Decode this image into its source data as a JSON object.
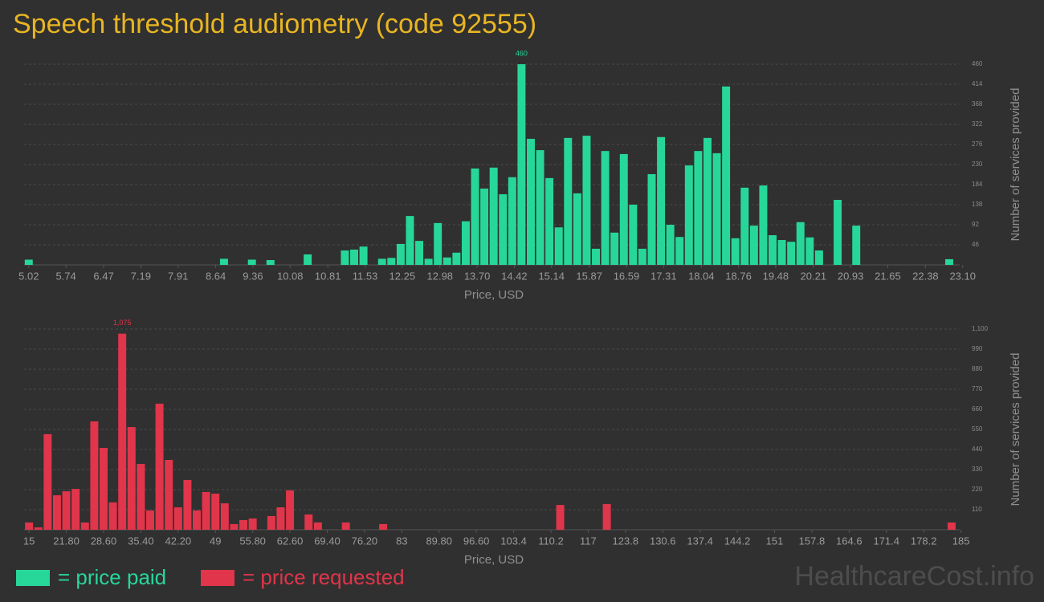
{
  "watermark": "HealthcareCost.info",
  "legend_position": "bottom-left",
  "chart_data": [
    {
      "type": "bar",
      "title": "Speech threshold audiometry (code 92555)",
      "xlabel": "Price, USD",
      "ylabel": "Number of services provided",
      "grid": true,
      "label_max": true,
      "x": [
        5.02,
        8.8,
        9.34,
        9.7,
        10.42,
        11.14,
        11.32,
        11.5,
        11.86,
        12.04,
        12.22,
        12.4,
        12.58,
        12.76,
        12.94,
        13.12,
        13.3,
        13.48,
        13.66,
        13.84,
        14.02,
        14.2,
        14.38,
        14.56,
        14.74,
        14.92,
        15.1,
        15.28,
        15.46,
        15.64,
        15.82,
        16.0,
        16.18,
        16.36,
        16.54,
        16.72,
        16.9,
        17.08,
        17.26,
        17.44,
        17.62,
        17.8,
        17.98,
        18.16,
        18.34,
        18.52,
        18.7,
        18.88,
        19.06,
        19.24,
        19.42,
        19.6,
        19.78,
        19.96,
        20.14,
        20.32,
        20.68,
        21.04,
        22.84
      ],
      "series": [
        {
          "name": "= price paid",
          "color": "#27d79a",
          "values": [
            12,
            14,
            12,
            11,
            24,
            33,
            35,
            42,
            14,
            16,
            48,
            112,
            55,
            14,
            96,
            17,
            28,
            100,
            221,
            175,
            223,
            162,
            201,
            460,
            289,
            263,
            199,
            86,
            291,
            164,
            296,
            37,
            261,
            74,
            254,
            138,
            37,
            208,
            293,
            92,
            64,
            228,
            261,
            291,
            256,
            409,
            61,
            177,
            90,
            182,
            68,
            57,
            53,
            98,
            63,
            33,
            149,
            90,
            13
          ]
        }
      ],
      "xlim": [
        4.93,
        23.12
      ],
      "xticks": [
        5.02,
        5.74,
        6.47,
        7.19,
        7.91,
        8.64,
        9.36,
        10.08,
        10.81,
        11.53,
        12.25,
        12.98,
        {
          "value": 13.7,
          "label": "13.70"
        },
        14.42,
        15.14,
        15.87,
        16.59,
        17.31,
        18.04,
        18.76,
        19.48,
        20.21,
        20.93,
        21.65,
        22.38,
        {
          "value": 23.1,
          "label": "23.10"
        }
      ],
      "ylim": [
        0,
        460
      ],
      "yticks": [
        46,
        92,
        138,
        184,
        230,
        276,
        322,
        368,
        414,
        460
      ]
    },
    {
      "type": "bar",
      "xlabel": "Price, USD",
      "ylabel": "Number of services provided",
      "grid": true,
      "label_max": true,
      "x": [
        15,
        16.7,
        18.4,
        20.1,
        21.8,
        23.5,
        25.2,
        26.9,
        28.6,
        30.3,
        32,
        33.7,
        35.4,
        37.1,
        38.8,
        40.5,
        42.2,
        43.9,
        45.6,
        47.3,
        49,
        50.7,
        52.4,
        54.1,
        55.8,
        59.2,
        60.9,
        62.6,
        66,
        67.7,
        72.8,
        79.6,
        111.9,
        120.4,
        183.3
      ],
      "series": [
        {
          "name": "= price requested",
          "color": "#e0354a",
          "values": [
            40,
            13,
            524,
            189,
            211,
            224,
            40,
            594,
            449,
            150,
            1075,
            563,
            361,
            106,
            691,
            383,
            123,
            273,
            106,
            207,
            198,
            145,
            31,
            53,
            62,
            75,
            123,
            216,
            84,
            40,
            40,
            31,
            136,
            141,
            40
          ]
        }
      ],
      "value_labels": [
        null,
        null,
        null,
        null,
        null,
        null,
        null,
        null,
        null,
        null,
        "1,075",
        null,
        null,
        null,
        null,
        null,
        null,
        null,
        null,
        null,
        null,
        null,
        null,
        null,
        null,
        null,
        null,
        null,
        null,
        null,
        null,
        null,
        null,
        null,
        null
      ],
      "xlim": [
        14.1,
        185.5
      ],
      "xticks": [
        15,
        {
          "value": 21.8,
          "label": "21.80"
        },
        {
          "value": 28.6,
          "label": "28.60"
        },
        {
          "value": 35.4,
          "label": "35.40"
        },
        {
          "value": 42.2,
          "label": "42.20"
        },
        49,
        {
          "value": 55.8,
          "label": "55.80"
        },
        {
          "value": 62.6,
          "label": "62.60"
        },
        {
          "value": 69.4,
          "label": "69.40"
        },
        {
          "value": 76.2,
          "label": "76.20"
        },
        83,
        {
          "value": 89.8,
          "label": "89.80"
        },
        {
          "value": 96.6,
          "label": "96.60"
        },
        103.4,
        110.2,
        117,
        123.8,
        130.6,
        137.4,
        144.2,
        151,
        157.8,
        164.6,
        171.4,
        178.2,
        185
      ],
      "ylim": [
        0,
        1100
      ],
      "yticks": [
        110,
        220,
        330,
        440,
        550,
        660,
        770,
        880,
        990,
        {
          "value": 1100,
          "label": "1,100"
        }
      ]
    }
  ]
}
